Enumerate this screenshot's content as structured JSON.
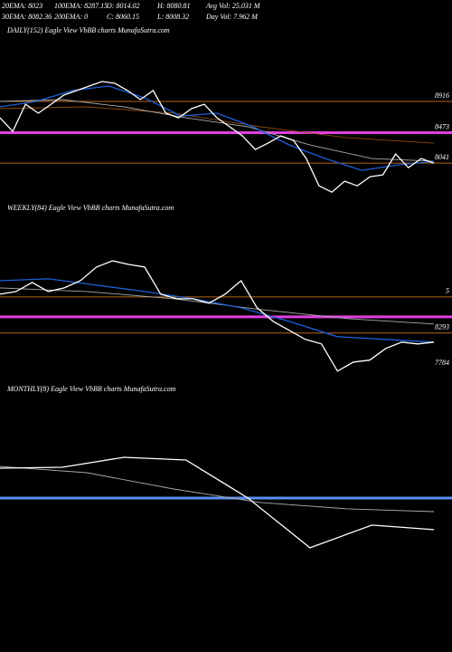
{
  "header": {
    "row1": [
      "20EMA: 8023",
      "100EMA: 8287.15",
      "O: 8014.02",
      "H: 8080.81",
      "Avg Vol: 25.031 M"
    ],
    "row2": [
      "30EMA: 8082.36",
      "200EMA: 0",
      "C: 8060.15",
      "L: 8008.32",
      "Day Vol: 7.962 M"
    ]
  },
  "chart_data": [
    {
      "type": "line",
      "title": "DAILY(152) Eagle  View  VbBB charts MunafaSutra.com",
      "ylim": [
        7400,
        9970
      ],
      "yticks": [
        8916,
        8473,
        8041
      ],
      "levels": [
        {
          "value": 8916,
          "color": "#b5651d"
        },
        {
          "value": 8473,
          "color": "#e040e0"
        },
        {
          "value": 8041,
          "color": "#b5651d"
        }
      ],
      "series": [
        {
          "color": "#8b4a12",
          "values": [
            8813,
            8839,
            8749,
            8556,
            8401,
            8324
          ]
        },
        {
          "color": "#aaaaaa",
          "values": [
            8916,
            8942,
            8839,
            8684,
            8556,
            8298,
            8105,
            8067
          ]
        },
        {
          "color": "#1f5fd6",
          "values": [
            8839,
            8916,
            9070,
            9135,
            8967,
            8710,
            8749,
            8556,
            8298,
            8105,
            7938,
            8015,
            8067
          ]
        },
        {
          "color": "#ffffff",
          "values": [
            8684,
            8491,
            8877,
            8749,
            8877,
            9006,
            9070,
            9135,
            9199,
            9173,
            9070,
            8942,
            9070,
            8749,
            8684,
            8813,
            8877,
            8684,
            8556,
            8427,
            8234,
            8324,
            8427,
            8363,
            8105,
            7719,
            7629,
            7784,
            7719,
            7848,
            7874,
            8170,
            7976,
            8105,
            8041
          ]
        }
      ]
    },
    {
      "type": "line",
      "title": "WEEKLY(84) Eagle  View  VbBB charts MunafaSutra.com",
      "ylim": [
        7620,
        10070
      ],
      "yticks": [
        8293,
        7784
      ],
      "annotations": [
        "5"
      ],
      "levels": [
        {
          "value": 8808,
          "color": "#b5651d"
        },
        {
          "value": 8525,
          "color": "#e040e0"
        },
        {
          "value": 8293,
          "color": "#b5651d"
        }
      ],
      "series": [
        {
          "color": "#aaaaaa",
          "values": [
            8937,
            8885,
            8782,
            8628,
            8499,
            8422
          ]
        },
        {
          "color": "#1f5fd6",
          "values": [
            9039,
            9065,
            8975,
            8885,
            8782,
            8653,
            8460,
            8242,
            8203,
            8164
          ]
        },
        {
          "color": "#ffffff",
          "values": [
            8846,
            8885,
            9014,
            8885,
            8937,
            9039,
            9233,
            9322,
            9271,
            9233,
            8846,
            8782,
            8782,
            8718,
            8846,
            9039,
            8653,
            8460,
            8332,
            8203,
            8139,
            7752,
            7881,
            7907,
            8074,
            8164,
            8139,
            8164
          ]
        }
      ]
    },
    {
      "type": "line",
      "title": "MONTHLY(8) Eagle  View  VbBB charts MunafaSutra.com",
      "ylim": [
        6360,
        9710
      ],
      "levels": [
        {
          "value": 8293,
          "color": "#5b8ff0"
        }
      ],
      "series": [
        {
          "color": "#aaaaaa",
          "values": [
            8743,
            8653,
            8422,
            8229,
            8139,
            8100
          ]
        },
        {
          "color": "#ffffff",
          "values": [
            8718,
            8731,
            8872,
            8834,
            8293,
            7585,
            7907,
            7843
          ]
        }
      ]
    }
  ]
}
